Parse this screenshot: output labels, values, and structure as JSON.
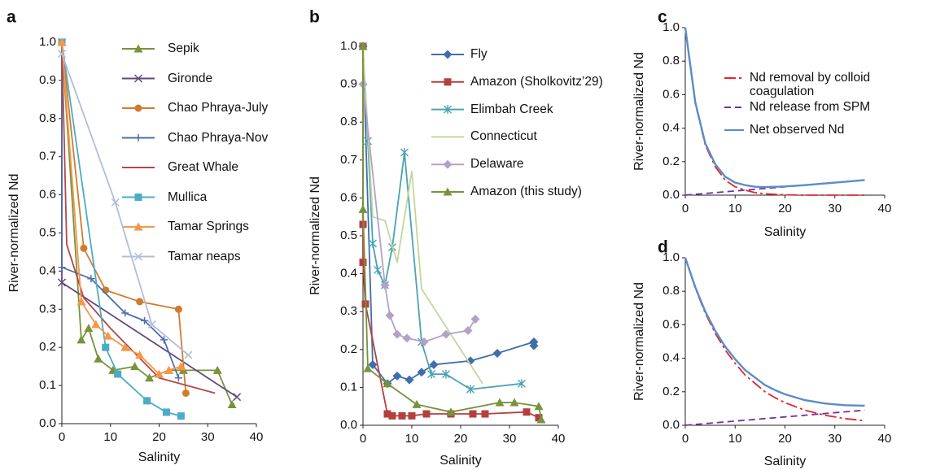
{
  "chart_data": [
    {
      "type": "line",
      "panel_label": "a",
      "x_label": "Salinity",
      "y_label": "River-normalized Nd",
      "xlim": [
        0,
        40
      ],
      "xticks": [
        0,
        10,
        20,
        30,
        40
      ],
      "ylim": [
        0,
        1
      ],
      "yticks": [
        {
          "value": 0,
          "label": "0.0"
        },
        0.1,
        0.2,
        0.3,
        0.4,
        0.5,
        0.6,
        0.7,
        0.8,
        0.9,
        {
          "value": 1,
          "label": "1.0"
        }
      ],
      "series": [
        {
          "name": "Sepik",
          "color": "#77933c",
          "marker": "triangle",
          "dash": "solid",
          "x": [
            0,
            4,
            5.5,
            7.5,
            10.5,
            15,
            18,
            22,
            25,
            32,
            35
          ],
          "values": [
            1.0,
            0.22,
            0.25,
            0.17,
            0.14,
            0.15,
            0.12,
            0.14,
            0.14,
            0.14,
            0.05
          ]
        },
        {
          "name": "Gironde",
          "color": "#604a7b",
          "marker": "x",
          "dash": "solid",
          "x": [
            0,
            0,
            36
          ],
          "values": [
            1.0,
            0.37,
            0.07
          ]
        },
        {
          "name": "Chao Phraya-July",
          "color": "#d07c2e",
          "marker": "circle",
          "dash": "solid",
          "x": [
            0,
            4.5,
            9,
            16,
            24,
            25.5
          ],
          "values": [
            1.0,
            0.46,
            0.35,
            0.32,
            0.3,
            0.08
          ]
        },
        {
          "name": "Chao Phraya-Nov",
          "color": "#4f6fa8",
          "marker": "plus",
          "dash": "solid",
          "x": [
            0,
            0,
            6,
            13,
            17,
            21,
            24
          ],
          "values": [
            1.0,
            0.41,
            0.38,
            0.29,
            0.27,
            0.22,
            0.12
          ]
        },
        {
          "name": "Great Whale",
          "color": "#b4474a",
          "marker": "none",
          "dash": "solid",
          "x": [
            0,
            1,
            4.5,
            10,
            20,
            31.5
          ],
          "values": [
            1.0,
            0.47,
            0.33,
            0.25,
            0.12,
            0.08
          ]
        },
        {
          "name": "Mullica",
          "color": "#4bacc6",
          "marker": "square",
          "dash": "solid",
          "x": [
            0,
            9,
            11.5,
            17.5,
            21.5,
            24.5
          ],
          "values": [
            1.0,
            0.2,
            0.13,
            0.06,
            0.03,
            0.02
          ]
        },
        {
          "name": "Tamar Springs",
          "color": "#f79646",
          "marker": "triangle",
          "dash": "solid",
          "x": [
            0,
            4,
            7,
            9.5,
            13,
            16,
            20,
            22,
            24.5
          ],
          "values": [
            1.0,
            0.32,
            0.26,
            0.23,
            0.2,
            0.18,
            0.13,
            0.14,
            0.15
          ]
        },
        {
          "name": "Tamar neaps",
          "color": "#b3bcd9",
          "marker": "x",
          "dash": "solid",
          "x": [
            0,
            11,
            18.5,
            26
          ],
          "values": [
            0.97,
            0.58,
            0.26,
            0.18
          ]
        }
      ]
    },
    {
      "type": "line",
      "panel_label": "b",
      "x_label": "Salinity",
      "y_label": "River-normalized Nd",
      "xlim": [
        0,
        40
      ],
      "xticks": [
        0,
        10,
        20,
        30,
        40
      ],
      "ylim": [
        0,
        1
      ],
      "yticks": [
        {
          "value": 0,
          "label": "0.0"
        },
        0.1,
        0.2,
        0.3,
        0.4,
        0.5,
        0.6,
        0.7,
        0.8,
        0.9,
        {
          "value": 1,
          "label": "1.0"
        }
      ],
      "series": [
        {
          "name": "Fly",
          "color": "#3f6faa",
          "marker": "diamond",
          "dash": "solid",
          "x": [
            0,
            2,
            5,
            7,
            9.5,
            12,
            14.5,
            22,
            27.5,
            35,
            35
          ],
          "values": [
            1.0,
            0.16,
            0.11,
            0.13,
            0.12,
            0.14,
            0.16,
            0.17,
            0.19,
            0.22,
            0.21
          ]
        },
        {
          "name": "Amazon (Sholkovitz’29)",
          "color": "#b3403e",
          "marker": "square",
          "dash": "solid",
          "x": [
            0,
            0,
            0,
            0.5,
            5,
            6,
            8,
            10,
            13,
            18,
            22.5,
            25,
            33.5,
            36
          ],
          "values": [
            1.0,
            0.53,
            0.43,
            0.32,
            0.03,
            0.025,
            0.025,
            0.025,
            0.03,
            0.03,
            0.03,
            0.03,
            0.035,
            0.02
          ]
        },
        {
          "name": "Elimbah Creek",
          "color": "#4aa3b3",
          "marker": "star",
          "dash": "solid",
          "x": [
            0,
            1,
            2,
            3,
            4.5,
            6,
            8.5,
            12,
            14,
            17,
            22,
            32.5
          ],
          "values": [
            1.0,
            0.75,
            0.48,
            0.41,
            0.37,
            0.47,
            0.72,
            0.22,
            0.135,
            0.135,
            0.095,
            0.11
          ]
        },
        {
          "name": "Connecticut",
          "color": "#c3d69b",
          "marker": "none",
          "dash": "solid",
          "x": [
            0,
            2,
            4.5,
            7,
            10,
            12,
            21,
            24.5
          ],
          "values": [
            1.0,
            0.55,
            0.54,
            0.43,
            0.67,
            0.36,
            0.18,
            0.11
          ]
        },
        {
          "name": "Delaware",
          "color": "#b3a2c7",
          "marker": "diamond",
          "dash": "solid",
          "x": [
            0,
            4.5,
            5.5,
            7,
            9,
            12.5,
            17,
            21.5,
            23
          ],
          "values": [
            0.9,
            0.37,
            0.29,
            0.24,
            0.23,
            0.22,
            0.24,
            0.25,
            0.28
          ]
        },
        {
          "name": "Amazon (this study)",
          "color": "#77933c",
          "marker": "triangle",
          "dash": "solid",
          "x": [
            0,
            0,
            1,
            5,
            11,
            18,
            28,
            31,
            36,
            36.5
          ],
          "values": [
            1.0,
            0.57,
            0.15,
            0.11,
            0.055,
            0.035,
            0.06,
            0.06,
            0.05,
            0.015
          ]
        }
      ]
    },
    {
      "type": "line",
      "panel_label": "c",
      "x_label": "Salinity",
      "y_label": "River-normalized Nd",
      "xlim": [
        0,
        40
      ],
      "xticks": [
        0,
        10,
        20,
        30,
        40
      ],
      "ylim": [
        0,
        1
      ],
      "yticks": [
        {
          "value": 0,
          "label": "0.0"
        },
        0.2,
        0.4,
        0.6,
        0.8,
        {
          "value": 1,
          "label": "1.0"
        }
      ],
      "series": [
        {
          "name": "Nd removal by colloid coagulation",
          "color": "#e3262a",
          "marker": "none",
          "dash": "dashdot",
          "x": [
            0,
            2,
            4,
            6,
            8,
            10,
            12,
            14,
            16,
            18,
            20,
            24,
            28,
            32,
            36
          ],
          "values": [
            1,
            0.55,
            0.3,
            0.17,
            0.09,
            0.05,
            0.03,
            0.015,
            0.008,
            0.005,
            0.002,
            0,
            0,
            0,
            0
          ]
        },
        {
          "name": "Nd release from SPM",
          "color": "#7030a0",
          "marker": "none",
          "dash": "dash",
          "x": [
            0,
            2,
            4,
            6,
            8,
            10,
            12,
            14,
            16,
            18,
            20,
            24,
            28,
            32,
            36
          ],
          "values": [
            0,
            0.005,
            0.01,
            0.015,
            0.02,
            0.025,
            0.03,
            0.035,
            0.04,
            0.045,
            0.05,
            0.06,
            0.07,
            0.08,
            0.09
          ]
        },
        {
          "name": "Net observed Nd",
          "color": "#5b8cc7",
          "marker": "none",
          "dash": "solid",
          "x": [
            0,
            2,
            4,
            6,
            8,
            10,
            12,
            14,
            16,
            18,
            20,
            24,
            28,
            32,
            36
          ],
          "values": [
            1,
            0.555,
            0.31,
            0.185,
            0.11,
            0.075,
            0.06,
            0.05,
            0.048,
            0.05,
            0.052,
            0.06,
            0.07,
            0.08,
            0.09
          ]
        }
      ]
    },
    {
      "type": "line",
      "panel_label": "d",
      "x_label": "Salinity",
      "y_label": "River-normalized Nd",
      "xlim": [
        0,
        40
      ],
      "xticks": [
        0,
        10,
        20,
        30,
        40
      ],
      "ylim": [
        0,
        1
      ],
      "yticks": [
        {
          "value": 0,
          "label": "0.0"
        },
        0.2,
        0.4,
        0.6,
        0.8,
        {
          "value": 1,
          "label": "1.0"
        }
      ],
      "series": [
        {
          "color": "#e3262a",
          "marker": "none",
          "dash": "dashdot",
          "x": [
            0,
            2,
            4,
            6,
            8,
            10,
            12,
            14,
            16,
            18,
            20,
            24,
            28,
            32,
            36
          ],
          "values": [
            1,
            0.82,
            0.67,
            0.55,
            0.45,
            0.37,
            0.3,
            0.25,
            0.2,
            0.165,
            0.135,
            0.09,
            0.06,
            0.04,
            0.027
          ]
        },
        {
          "color": "#7030a0",
          "marker": "none",
          "dash": "dash",
          "x": [
            0,
            2,
            4,
            6,
            8,
            10,
            12,
            14,
            16,
            18,
            20,
            24,
            28,
            32,
            36
          ],
          "values": [
            0,
            0.005,
            0.01,
            0.015,
            0.02,
            0.025,
            0.03,
            0.035,
            0.04,
            0.045,
            0.05,
            0.06,
            0.07,
            0.08,
            0.09
          ]
        },
        {
          "color": "#5b8cc7",
          "marker": "none",
          "dash": "solid",
          "x": [
            0,
            2,
            4,
            6,
            8,
            10,
            12,
            14,
            16,
            18,
            20,
            24,
            28,
            32,
            36
          ],
          "values": [
            1,
            0.825,
            0.68,
            0.565,
            0.47,
            0.395,
            0.33,
            0.285,
            0.24,
            0.21,
            0.185,
            0.15,
            0.13,
            0.12,
            0.117
          ]
        }
      ]
    }
  ]
}
